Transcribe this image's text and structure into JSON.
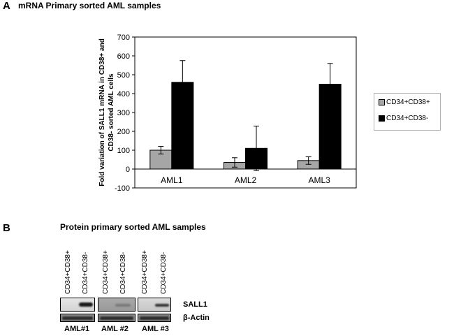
{
  "panel_a": {
    "letter": "A",
    "title": "mRNA Primary  sorted AML samples"
  },
  "chart_data": {
    "type": "bar",
    "categories": [
      "AML1",
      "AML2",
      "AML3"
    ],
    "series": [
      {
        "name": "CD34+CD38+",
        "values": [
          100,
          35,
          45
        ],
        "errors": [
          20,
          25,
          20
        ],
        "color": "#a6a6a6"
      },
      {
        "name": "CD34+CD38-",
        "values": [
          460,
          110,
          450
        ],
        "errors": [
          115,
          118,
          110
        ],
        "color": "#000000"
      }
    ],
    "ylabel_line1": "Fold variation of SALL1 mRNA in CD38+ and",
    "ylabel_line2": "CD38- sorted AML cells",
    "ylim": [
      -100,
      700
    ],
    "yticks": [
      -100,
      0,
      100,
      200,
      300,
      400,
      500,
      600,
      700
    ],
    "legend_position": "right",
    "grid": false
  },
  "panel_b": {
    "letter": "B",
    "title": "Protein primary  sorted AML samples",
    "lanes": [
      "CD34+CD38+",
      "CD34+CD38-",
      "CD34+CD38+",
      "CD34+CD38-",
      "CD34+CD38+",
      "CD34+CD38-"
    ],
    "blot_labels": [
      "SALL1",
      "β-Actin"
    ],
    "samples": [
      "AML#1",
      "AML #2",
      "AML #3"
    ]
  }
}
